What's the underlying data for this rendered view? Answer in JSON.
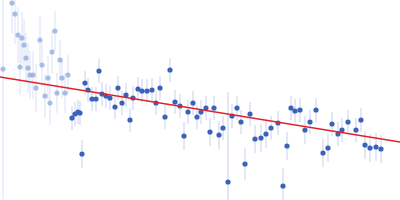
{
  "chart_data": {
    "type": "scatter",
    "xlim": [
      0,
      400
    ],
    "ylim": [
      0,
      200
    ],
    "xticks": [],
    "yticks": [],
    "tick_labels": false,
    "grid": false,
    "series": [
      {
        "type": "scatter",
        "color": "#8eaadf",
        "marker": "circle",
        "x": [
          3,
          12,
          15,
          18,
          20,
          22,
          24,
          26,
          28,
          30,
          33,
          36,
          40,
          42,
          45,
          48,
          50,
          52,
          55,
          57,
          60,
          62,
          65,
          68
        ],
        "values": [
          131,
          197,
          186,
          165,
          133,
          162,
          155,
          142,
          132,
          125,
          125,
          112,
          160,
          135,
          104,
          122,
          97,
          148,
          169,
          107,
          140,
          122,
          107,
          125
        ],
        "error": [
          130,
          30,
          30,
          28,
          28,
          26,
          26,
          25,
          25,
          24,
          24,
          24,
          24,
          22,
          22,
          22,
          22,
          22,
          20,
          20,
          20,
          20,
          20,
          20
        ]
      },
      {
        "type": "scatter",
        "color": "#3a62b8",
        "marker": "circle",
        "x": [
          72,
          75,
          78,
          80,
          82,
          85,
          88,
          92,
          96,
          99,
          102,
          106,
          110,
          115,
          118,
          122,
          126,
          130,
          133,
          138,
          142,
          147,
          152,
          156,
          160,
          165,
          170,
          175,
          180,
          184,
          188,
          193,
          197,
          201,
          206,
          210,
          214,
          219,
          223,
          228,
          232,
          237,
          241,
          245,
          250,
          255,
          261,
          266,
          271,
          278,
          283,
          287,
          291,
          295,
          300,
          305,
          310,
          316,
          323,
          328,
          332,
          338,
          342,
          348,
          356,
          361,
          365,
          370,
          376,
          381
        ],
        "values": [
          82,
          86,
          88,
          87,
          46,
          117,
          110,
          101,
          101,
          129,
          106,
          104,
          102,
          93,
          112,
          97,
          105,
          80,
          102,
          111,
          109,
          109,
          110,
          97,
          112,
          83,
          130,
          98,
          94,
          64,
          88,
          97,
          83,
          88,
          92,
          68,
          92,
          65,
          72,
          18,
          84,
          92,
          78,
          36,
          86,
          61,
          62,
          66,
          72,
          77,
          14,
          54,
          92,
          89,
          90,
          70,
          78,
          90,
          47,
          52,
          76,
          66,
          70,
          78,
          70,
          80,
          55,
          52,
          53,
          51
        ],
        "error": [
          12,
          12,
          12,
          12,
          14,
          12,
          12,
          12,
          12,
          12,
          12,
          12,
          12,
          12,
          12,
          12,
          12,
          12,
          12,
          12,
          12,
          12,
          12,
          12,
          12,
          12,
          12,
          12,
          12,
          14,
          12,
          12,
          12,
          12,
          12,
          14,
          12,
          14,
          12,
          90,
          12,
          12,
          12,
          16,
          12,
          14,
          14,
          14,
          12,
          12,
          18,
          14,
          12,
          12,
          12,
          14,
          12,
          12,
          14,
          14,
          12,
          12,
          12,
          12,
          12,
          12,
          14,
          14,
          14,
          14
        ]
      },
      {
        "type": "line",
        "color": "#e0202a",
        "line_style": "solid",
        "x": [
          0,
          400
        ],
        "values": [
          123,
          58
        ]
      }
    ]
  }
}
